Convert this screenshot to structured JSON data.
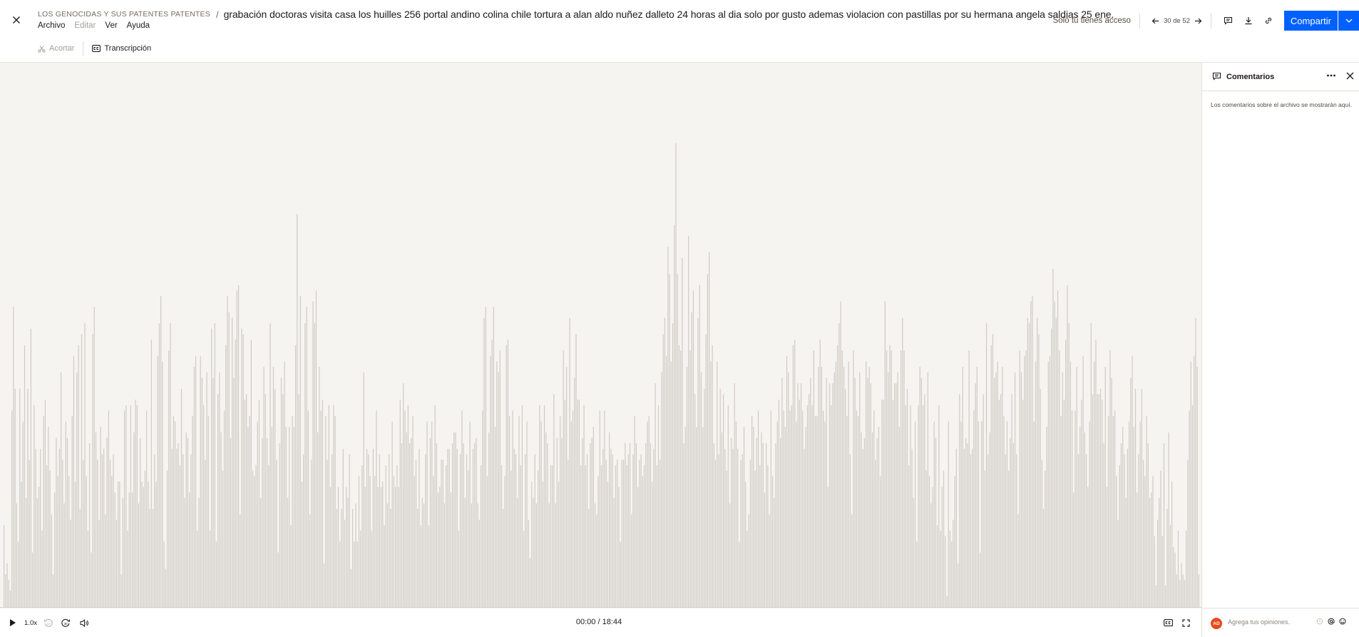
{
  "header": {
    "folder": "LOS GENOCIDAS Y SUS PATENTES PATENTES",
    "separator": "/",
    "title": "grabación doctoras visita casa los huilles 256 portal andino colina chile tortura a alan aldo nuñez dalleto 24 horas al dia solo por gusto ademas violacion con pastillas por su hermana angela saldias 25 ene.",
    "menu": [
      {
        "label": "Archivo",
        "disabled": false
      },
      {
        "label": "Editar",
        "disabled": true
      },
      {
        "label": "Ver",
        "disabled": false
      },
      {
        "label": "Ayuda",
        "disabled": false
      }
    ],
    "access": "Solo tú tienes acceso",
    "pager": "30 de 52",
    "share_label": "Compartir"
  },
  "toolbar": {
    "trim_label": "Acortar",
    "transcript_label": "Transcripción"
  },
  "player": {
    "speed": "1.0x",
    "skip_back": "10",
    "skip_forward": "30",
    "time": "00:00 / 18:44"
  },
  "comments": {
    "title": "Comentarios",
    "empty_message": "Los comentarios sobre el archivo se mostrarán aquí.",
    "avatar_initials": "AD",
    "input_placeholder": "Agrega tus opiniones."
  },
  "colors": {
    "accent": "#0061fe",
    "waveform_bar": "#cfcac4",
    "waveform_background": "#f6f4f1",
    "avatar": "#e84a1d"
  },
  "waveform_levels": [
    0.15,
    0.06,
    0.08,
    0.05,
    0.03,
    0.36,
    0.55,
    0.4,
    0.19,
    0.12,
    0.4,
    0.23,
    0.34,
    0.48,
    0.2,
    0.4,
    0.27,
    0.51,
    0.1,
    0.37,
    0.29,
    0.2,
    0.22,
    0.29,
    0.14,
    0.35,
    0.38,
    0.26,
    0.33,
    0.25,
    0.17,
    0.06,
    0.21,
    0.31,
    0.24,
    0.29,
    0.43,
    0.27,
    0.19,
    0.34,
    0.31,
    0.24,
    0.16,
    0.35,
    0.46,
    0.23,
    0.43,
    0.48,
    0.18,
    0.5,
    0.27,
    0.52,
    0.24,
    0.14,
    0.3,
    0.1,
    0.5,
    0.55,
    0.32,
    0.27,
    0.16,
    0.33,
    0.28,
    0.29,
    0.17,
    0.31,
    0.36,
    0.27,
    0.24,
    0.28,
    0.21,
    0.16,
    0.23,
    0.23,
    0.06,
    0.2,
    0.36,
    0.37,
    0.14,
    0.21,
    0.37,
    0.21,
    0.32,
    0.38,
    0.37,
    0.19,
    0.31,
    0.23,
    0.22,
    0.25,
    0.36,
    0.23,
    0.18,
    0.49,
    0.18,
    0.28,
    0.23,
    0.46,
    0.52,
    0.57,
    0.45,
    0.12,
    0.07,
    0.25,
    0.47,
    0.52,
    0.29,
    0.35,
    0.34,
    0.29,
    0.3,
    0.26,
    0.4,
    0.28,
    0.2,
    0.32,
    0.31,
    0.21,
    0.28,
    0.35,
    0.44,
    0.46,
    0.14,
    0.2,
    0.46,
    0.42,
    0.37,
    0.27,
    0.43,
    0.35,
    0.14,
    0.51,
    0.42,
    0.52,
    0.12,
    0.39,
    0.43,
    0.32,
    0.25,
    0.36,
    0.48,
    0.57,
    0.54,
    0.31,
    0.53,
    0.42,
    0.49,
    0.58,
    0.59,
    0.17,
    0.51,
    0.5,
    0.38,
    0.39,
    0.33,
    0.35,
    0.49,
    0.25,
    0.24,
    0.26,
    0.34,
    0.38,
    0.2,
    0.31,
    0.44,
    0.39,
    0.31,
    0.26,
    0.52,
    0.33,
    0.44,
    0.4,
    0.27,
    0.1,
    0.3,
    0.42,
    0.39,
    0.45,
    0.33,
    0.2,
    0.33,
    0.15,
    0.35,
    0.33,
    0.48,
    0.72,
    0.39,
    0.57,
    0.23,
    0.28,
    0.52,
    0.55,
    0.36,
    0.17,
    0.27,
    0.56,
    0.52,
    0.58,
    0.32,
    0.44,
    0.36,
    0.38,
    0.08,
    0.35,
    0.27,
    0.37,
    0.22,
    0.28,
    0.37,
    0.35,
    0.18,
    0.22,
    0.12,
    0.18,
    0.29,
    0.16,
    0.22,
    0.2,
    0.28,
    0.07,
    0.18,
    0.12,
    0.19,
    0.12,
    0.24,
    0.14,
    0.26,
    0.43,
    0.22,
    0.29,
    0.28,
    0.24,
    0.14,
    0.29,
    0.24,
    0.36,
    0.22,
    0.28,
    0.22,
    0.23,
    0.15,
    0.26,
    0.19,
    0.28,
    0.18,
    0.34,
    0.24,
    0.22,
    0.26,
    0.22,
    0.38,
    0.3,
    0.41,
    0.36,
    0.32,
    0.37,
    0.3,
    0.31,
    0.35,
    0.24,
    0.27,
    0.18,
    0.29,
    0.15,
    0.2,
    0.19,
    0.28,
    0.34,
    0.15,
    0.31,
    0.34,
    0.24,
    0.37,
    0.3,
    0.21,
    0.22,
    0.27,
    0.27,
    0.19,
    0.26,
    0.29,
    0.29,
    0.21,
    0.3,
    0.32,
    0.32,
    0.29,
    0.14,
    0.28,
    0.36,
    0.3,
    0.2,
    0.28,
    0.25,
    0.34,
    0.19,
    0.29,
    0.3,
    0.31,
    0.19,
    0.16,
    0.26,
    0.36,
    0.53,
    0.55,
    0.24,
    0.32,
    0.46,
    0.49,
    0.55,
    0.33,
    0.45,
    0.43,
    0.47,
    0.26,
    0.18,
    0.24,
    0.48,
    0.49,
    0.35,
    0.25,
    0.36,
    0.29,
    0.28,
    0.2,
    0.35,
    0.26,
    0.37,
    0.14,
    0.28,
    0.34,
    0.16,
    0.09,
    0.23,
    0.2,
    0.28,
    0.19,
    0.25,
    0.37,
    0.34,
    0.23,
    0.37,
    0.32,
    0.3,
    0.19,
    0.26,
    0.26,
    0.39,
    0.19,
    0.31,
    0.23,
    0.35,
    0.31,
    0.47,
    0.38,
    0.44,
    0.27,
    0.53,
    0.34,
    0.36,
    0.42,
    0.5,
    0.38,
    0.38,
    0.26,
    0.31,
    0.37,
    0.26,
    0.28,
    0.18,
    0.3,
    0.31,
    0.33,
    0.19,
    0.17,
    0.24,
    0.36,
    0.26,
    0.29,
    0.36,
    0.27,
    0.23,
    0.32,
    0.29,
    0.28,
    0.2,
    0.26,
    0.27,
    0.22,
    0.12,
    0.27,
    0.27,
    0.3,
    0.26,
    0.28,
    0.3,
    0.17,
    0.28,
    0.35,
    0.3,
    0.22,
    0.27,
    0.28,
    0.24,
    0.26,
    0.3,
    0.34,
    0.35,
    0.3,
    0.23,
    0.29,
    0.41,
    0.26,
    0.37,
    0.27,
    0.43,
    0.5,
    0.53,
    0.46,
    0.66,
    0.61,
    0.45,
    0.52,
    0.7,
    0.85,
    0.61,
    0.48,
    0.47,
    0.64,
    0.3,
    0.33,
    0.44,
    0.68,
    0.47,
    0.54,
    0.58,
    0.39,
    0.33,
    0.53,
    0.59,
    0.43,
    0.33,
    0.4,
    0.5,
    0.61,
    0.65,
    0.45,
    0.48,
    0.3,
    0.27,
    0.45,
    0.28,
    0.4,
    0.32,
    0.39,
    0.29,
    0.25,
    0.37,
    0.19,
    0.31,
    0.29,
    0.41,
    0.34,
    0.29,
    0.12,
    0.27,
    0.28,
    0.33,
    0.23,
    0.14,
    0.17,
    0.27,
    0.35,
    0.33,
    0.25,
    0.31,
    0.36,
    0.26,
    0.32,
    0.3,
    0.21,
    0.3,
    0.26,
    0.17,
    0.36,
    0.24,
    0.2,
    0.3,
    0.34,
    0.38,
    0.31,
    0.42,
    0.36,
    0.33,
    0.46,
    0.43,
    0.36,
    0.37,
    0.48,
    0.49,
    0.34,
    0.41,
    0.38,
    0.41,
    0.36,
    0.29,
    0.33,
    0.37,
    0.39,
    0.42,
    0.37,
    0.47,
    0.35,
    0.35,
    0.44,
    0.49,
    0.44,
    0.36,
    0.34,
    0.42,
    0.22,
    0.41,
    0.37,
    0.41,
    0.43,
    0.45,
    0.48,
    0.52,
    0.56,
    0.47,
    0.44,
    0.4,
    0.35,
    0.45,
    0.28,
    0.17,
    0.47,
    0.42,
    0.36,
    0.35,
    0.43,
    0.32,
    0.29,
    0.31,
    0.45,
    0.42,
    0.44,
    0.41,
    0.32,
    0.36,
    0.27,
    0.31,
    0.33,
    0.24,
    0.38,
    0.38,
    0.56,
    0.47,
    0.43,
    0.48,
    0.47,
    0.38,
    0.41,
    0.41,
    0.43,
    0.33,
    0.47,
    0.53,
    0.47,
    0.37,
    0.4,
    0.26,
    0.37,
    0.29,
    0.2,
    0.34,
    0.12,
    0.37,
    0.44,
    0.42,
    0.37,
    0.39,
    0.25,
    0.43,
    0.24,
    0.19,
    0.22,
    0.34,
    0.31,
    0.15,
    0.37,
    0.14,
    0.22,
    0.25,
    0.13,
    0.02,
    0.34,
    0.14,
    0.12,
    0.16,
    0.24,
    0.29,
    0.08,
    0.39,
    0.34,
    0.44,
    0.29,
    0.31,
    0.3,
    0.47,
    0.28,
    0.29,
    0.36,
    0.41,
    0.44,
    0.34,
    0.1,
    0.34,
    0.39,
    0.25,
    0.52,
    0.28,
    0.32,
    0.48,
    0.5,
    0.42,
    0.43,
    0.45,
    0.38,
    0.39,
    0.44,
    0.35,
    0.28,
    0.34,
    0.25,
    0.31,
    0.39,
    0.3,
    0.43,
    0.28,
    0.17,
    0.47,
    0.43,
    0.38,
    0.46,
    0.47,
    0.53,
    0.52,
    0.56,
    0.57,
    0.34,
    0.45,
    0.53,
    0.5,
    0.4,
    0.27,
    0.18,
    0.25,
    0.33,
    0.45,
    0.46,
    0.51,
    0.62,
    0.56,
    0.53,
    0.58,
    0.47,
    0.35,
    0.43,
    0.38,
    0.49,
    0.59,
    0.52,
    0.45,
    0.36,
    0.21,
    0.36,
    0.44,
    0.28,
    0.33,
    0.38,
    0.46,
    0.32,
    0.28,
    0.22,
    0.34,
    0.52,
    0.39,
    0.45,
    0.49,
    0.39,
    0.39,
    0.4,
    0.38,
    0.3,
    0.44,
    0.22,
    0.35,
    0.47,
    0.42,
    0.35,
    0.36,
    0.24,
    0.16,
    0.26,
    0.3,
    0.33,
    0.28,
    0.2,
    0.29,
    0.34,
    0.42,
    0.46,
    0.33,
    0.4,
    0.21,
    0.28,
    0.34,
    0.4,
    0.27,
    0.24,
    0.35,
    0.3,
    0.2,
    0.21,
    0.24,
    0.13,
    0.04,
    0.16,
    0.2,
    0.25,
    0.13,
    0.3,
    0.04,
    0.18,
    0.32,
    0.15,
    0.23,
    0.11,
    0.1,
    0.06,
    0.14,
    0.05,
    0.08,
    0.06,
    0.05,
    0.14,
    0.27,
    0.36,
    0.45,
    0.37,
    0.46,
    0.53,
    0.44,
    0.06
  ]
}
